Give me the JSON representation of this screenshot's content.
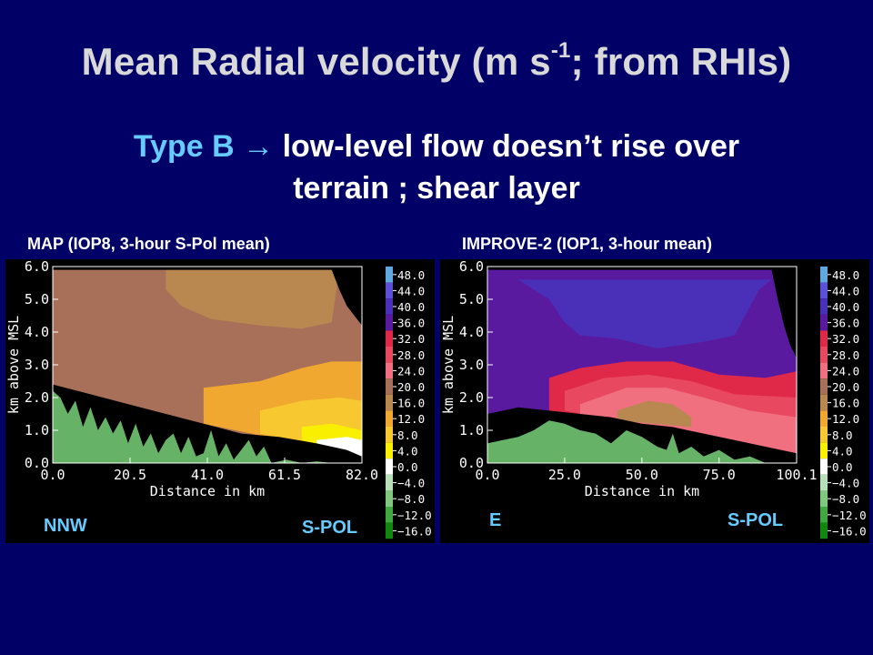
{
  "slide": {
    "title_main": "Mean Radial velocity (m s",
    "title_sup": "-1",
    "title_end": "; from RHIs)",
    "subtitle_type": "Type B",
    "subtitle_line1": "low-level flow doesn’t rise over",
    "subtitle_line2": "terrain ; shear layer"
  },
  "colors": {
    "background": "#000066",
    "accent": "#66ccff",
    "terrain": "#66b266"
  },
  "colorbar": {
    "levels": [
      "48.0",
      "44.0",
      "40.0",
      "36.0",
      "32.0",
      "28.0",
      "24.0",
      "20.0",
      "16.0",
      "12.0",
      "8.0",
      "4.0",
      "0.0",
      "−4.0",
      "−8.0",
      "−12.0",
      "−16.0"
    ],
    "colors": [
      "#5fa8e0",
      "#5c4fd8",
      "#4a30b8",
      "#5a1aa0",
      "#e02848",
      "#e84860",
      "#f07080",
      "#a87058",
      "#b88850",
      "#f0a830",
      "#f8c830",
      "#f8f000",
      "#ffffff",
      "#b8e0b8",
      "#80c880",
      "#40a840",
      "#108810"
    ]
  },
  "chart_data": [
    {
      "type": "heatmap",
      "panel_title": "MAP (IOP8, 3-hour S-Pol mean)",
      "xlabel": "Distance in km",
      "ylabel": "km above MSL",
      "xticks": [
        "0.0",
        "20.5",
        "41.0",
        "61.5",
        "82.0"
      ],
      "yticks": [
        "0.0",
        "1.0",
        "2.0",
        "3.0",
        "4.0",
        "5.0",
        "6.0"
      ],
      "xlim": [
        0,
        82
      ],
      "ylim": [
        0,
        6
      ],
      "left_label": "NNW",
      "right_label": "S-POL",
      "terrain": [
        [
          0,
          2.2
        ],
        [
          2,
          2.0
        ],
        [
          4,
          1.5
        ],
        [
          6,
          1.9
        ],
        [
          8,
          1.1
        ],
        [
          10,
          1.7
        ],
        [
          12,
          1.0
        ],
        [
          14,
          1.4
        ],
        [
          16,
          0.9
        ],
        [
          18,
          1.3
        ],
        [
          20,
          0.6
        ],
        [
          22,
          1.2
        ],
        [
          24,
          0.5
        ],
        [
          26,
          0.9
        ],
        [
          28,
          0.3
        ],
        [
          30,
          0.7
        ],
        [
          32,
          0.9
        ],
        [
          34,
          0.3
        ],
        [
          36,
          0.8
        ],
        [
          38,
          0.2
        ],
        [
          40,
          0.3
        ],
        [
          42,
          1.0
        ],
        [
          44,
          0.2
        ],
        [
          46,
          0.6
        ],
        [
          48,
          0.1
        ],
        [
          50,
          0.4
        ],
        [
          52,
          0.7
        ],
        [
          54,
          0.2
        ],
        [
          56,
          0.5
        ],
        [
          58,
          0.0
        ],
        [
          62,
          0.1
        ],
        [
          66,
          0.0
        ],
        [
          70,
          0.05
        ],
        [
          74,
          0.0
        ],
        [
          82,
          0.0
        ]
      ],
      "echo_top": [
        [
          0,
          5.9
        ],
        [
          74,
          5.9
        ],
        [
          76,
          5.3
        ],
        [
          78,
          4.8
        ],
        [
          80,
          4.5
        ],
        [
          82,
          4.2
        ]
      ],
      "data_base": [
        [
          0,
          2.4
        ],
        [
          10,
          2.1
        ],
        [
          20,
          1.8
        ],
        [
          30,
          1.5
        ],
        [
          40,
          1.2
        ],
        [
          50,
          0.9
        ],
        [
          60,
          0.8
        ],
        [
          70,
          0.6
        ],
        [
          78,
          0.4
        ],
        [
          82,
          0.2
        ]
      ],
      "layers": [
        {
          "value": 20.0,
          "boundary": [
            [
              0,
              5.9
            ],
            [
              82,
              5.9
            ]
          ]
        },
        {
          "value": 16.0,
          "boundary": [
            [
              30,
              5.9
            ],
            [
              30,
              5.3
            ],
            [
              34,
              4.8
            ],
            [
              42,
              4.4
            ],
            [
              55,
              4.2
            ],
            [
              66,
              4.1
            ],
            [
              74,
              4.3
            ],
            [
              76,
              5.9
            ]
          ]
        },
        {
          "value": 12.0,
          "boundary": [
            [
              40,
              2.3
            ],
            [
              55,
              2.5
            ],
            [
              66,
              2.9
            ],
            [
              74,
              3.1
            ],
            [
              82,
              3.1
            ],
            [
              82,
              0.2
            ],
            [
              40,
              1.2
            ]
          ]
        },
        {
          "value": 8.0,
          "boundary": [
            [
              55,
              1.6
            ],
            [
              66,
              1.9
            ],
            [
              76,
              2.0
            ],
            [
              82,
              1.9
            ],
            [
              82,
              0.2
            ],
            [
              55,
              0.9
            ]
          ]
        },
        {
          "value": 4.0,
          "boundary": [
            [
              66,
              1.1
            ],
            [
              74,
              1.2
            ],
            [
              82,
              1.0
            ],
            [
              82,
              0.2
            ],
            [
              66,
              0.7
            ]
          ]
        },
        {
          "value": 0.0,
          "boundary": [
            [
              70,
              0.7
            ],
            [
              78,
              0.8
            ],
            [
              82,
              0.7
            ],
            [
              82,
              0.2
            ],
            [
              70,
              0.6
            ]
          ]
        }
      ]
    },
    {
      "type": "heatmap",
      "panel_title": "IMPROVE-2 (IOP1, 3-hour mean)",
      "xlabel": "Distance in km",
      "ylabel": "km above MSL",
      "xticks": [
        "0.0",
        "25.0",
        "50.0",
        "75.0",
        "100.1"
      ],
      "yticks": [
        "0.0",
        "1.0",
        "2.0",
        "3.0",
        "4.0",
        "5.0",
        "6.0"
      ],
      "xlim": [
        0,
        100.1
      ],
      "ylim": [
        0,
        6
      ],
      "left_label": "E",
      "right_label": "S-POL",
      "terrain": [
        [
          0,
          0.6
        ],
        [
          5,
          0.7
        ],
        [
          10,
          0.8
        ],
        [
          15,
          1.0
        ],
        [
          20,
          1.3
        ],
        [
          25,
          1.2
        ],
        [
          30,
          1.0
        ],
        [
          35,
          0.9
        ],
        [
          40,
          0.6
        ],
        [
          45,
          1.0
        ],
        [
          50,
          0.8
        ],
        [
          55,
          0.5
        ],
        [
          58,
          0.4
        ],
        [
          60,
          0.9
        ],
        [
          62,
          0.3
        ],
        [
          66,
          0.5
        ],
        [
          70,
          0.2
        ],
        [
          75,
          0.4
        ],
        [
          80,
          0.1
        ],
        [
          85,
          0.2
        ],
        [
          90,
          0.0
        ],
        [
          100.1,
          0.0
        ]
      ],
      "echo_top": [
        [
          0,
          5.9
        ],
        [
          92,
          5.9
        ],
        [
          94,
          5.0
        ],
        [
          96,
          4.2
        ],
        [
          98,
          3.6
        ],
        [
          100.1,
          3.2
        ]
      ],
      "data_base": [
        [
          0,
          1.5
        ],
        [
          10,
          1.7
        ],
        [
          20,
          1.6
        ],
        [
          30,
          1.5
        ],
        [
          40,
          1.4
        ],
        [
          50,
          1.2
        ],
        [
          60,
          1.1
        ],
        [
          70,
          0.9
        ],
        [
          80,
          0.7
        ],
        [
          90,
          0.5
        ],
        [
          100.1,
          0.3
        ]
      ],
      "layers": [
        {
          "value": 36.0,
          "boundary": [
            [
              0,
              5.9
            ],
            [
              100.1,
              5.9
            ]
          ]
        },
        {
          "value": 40.0,
          "boundary": [
            [
              10,
              5.6
            ],
            [
              20,
              5.0
            ],
            [
              25,
              4.3
            ],
            [
              30,
              3.9
            ],
            [
              42,
              3.8
            ],
            [
              55,
              3.5
            ],
            [
              70,
              3.7
            ],
            [
              80,
              3.9
            ],
            [
              84,
              4.6
            ],
            [
              88,
              5.3
            ],
            [
              92,
              5.6
            ]
          ]
        },
        {
          "value": 32.0,
          "boundary": [
            [
              20,
              2.6
            ],
            [
              30,
              2.9
            ],
            [
              45,
              3.1
            ],
            [
              60,
              3.1
            ],
            [
              75,
              2.7
            ],
            [
              90,
              2.6
            ],
            [
              100.1,
              2.8
            ],
            [
              100.1,
              0.3
            ],
            [
              20,
              1.6
            ]
          ]
        },
        {
          "value": 28.0,
          "boundary": [
            [
              25,
              2.2
            ],
            [
              38,
              2.6
            ],
            [
              52,
              2.7
            ],
            [
              66,
              2.5
            ],
            [
              80,
              2.1
            ],
            [
              100.1,
              2.0
            ],
            [
              100.1,
              0.3
            ],
            [
              25,
              1.6
            ]
          ]
        },
        {
          "value": 24.0,
          "boundary": [
            [
              30,
              1.8
            ],
            [
              45,
              2.3
            ],
            [
              58,
              2.3
            ],
            [
              70,
              2.0
            ],
            [
              85,
              1.6
            ],
            [
              100.1,
              1.4
            ],
            [
              100.1,
              0.3
            ],
            [
              30,
              1.5
            ]
          ]
        },
        {
          "value": 16.0,
          "boundary": [
            [
              42,
              1.6
            ],
            [
              52,
              1.9
            ],
            [
              60,
              1.8
            ],
            [
              66,
              1.4
            ],
            [
              66,
              1.1
            ],
            [
              42,
              1.3
            ]
          ]
        }
      ]
    }
  ]
}
